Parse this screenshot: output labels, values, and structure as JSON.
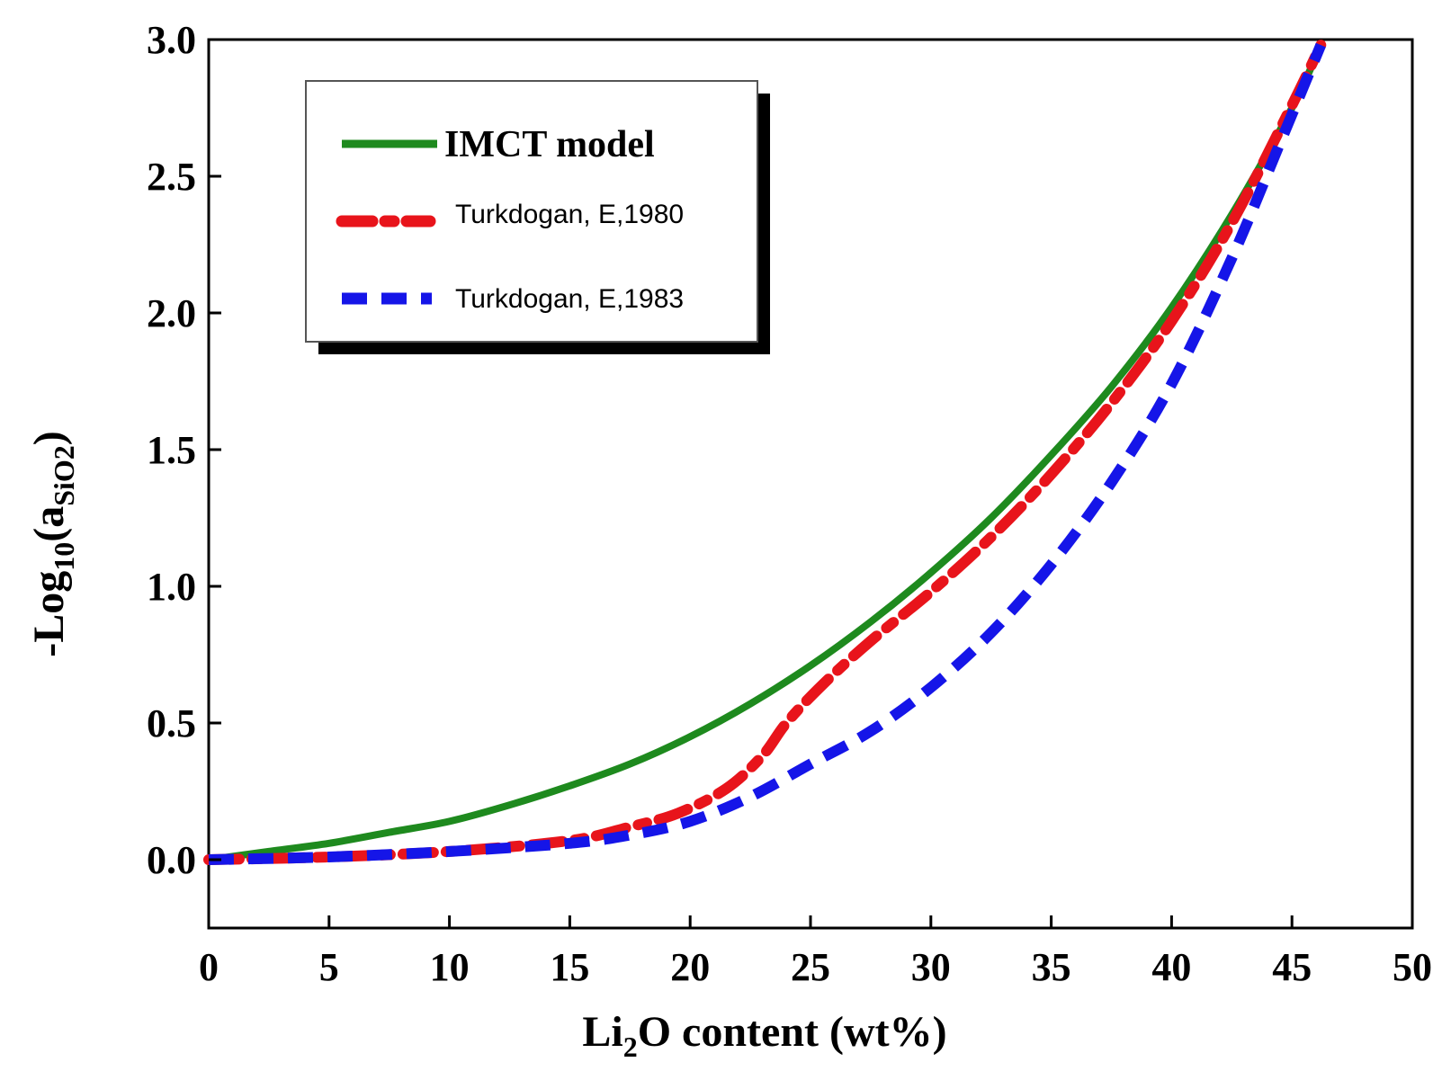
{
  "chart_data": {
    "type": "line",
    "xlabel": {
      "pre": "Li",
      "sub": "2",
      "post": "O content (wt%)"
    },
    "ylabel": {
      "pre": "-Log",
      "sub1": "10",
      "mid": "(a",
      "sub2": "SiO2",
      "post": ")"
    },
    "xlim": [
      0,
      50
    ],
    "ylim": [
      -0.25,
      3.0
    ],
    "xticks": [
      0,
      5,
      10,
      15,
      20,
      25,
      30,
      35,
      40,
      45,
      50
    ],
    "xtick_labels": [
      "0",
      "5",
      "10",
      "15",
      "20",
      "25",
      "30",
      "35",
      "40",
      "45",
      "50"
    ],
    "yticks": [
      0.0,
      0.5,
      1.0,
      1.5,
      2.0,
      2.5,
      3.0
    ],
    "ytick_labels": [
      "0.0",
      "0.5",
      "1.0",
      "1.5",
      "2.0",
      "2.5",
      "3.0"
    ],
    "grid": false,
    "legend_position": "top-left",
    "series": [
      {
        "name": "IMCT model",
        "color": "#1e8a1e",
        "style": "solid",
        "x": [
          0,
          2.5,
          5,
          7.5,
          10,
          12.5,
          15,
          17.5,
          20,
          22.5,
          25,
          27.5,
          30,
          32.5,
          35,
          37.5,
          40,
          42.5,
          45,
          46.2
        ],
        "y": [
          0.0,
          0.03,
          0.06,
          0.1,
          0.14,
          0.2,
          0.27,
          0.35,
          0.45,
          0.57,
          0.71,
          0.87,
          1.05,
          1.25,
          1.48,
          1.73,
          2.02,
          2.36,
          2.75,
          2.98
        ]
      },
      {
        "name": "Turkdogan, E,1980",
        "color": "#e8141b",
        "style": "dashdot",
        "x": [
          0,
          5,
          10,
          15,
          17.5,
          19.5,
          21.5,
          23,
          24,
          25.5,
          27.5,
          30,
          32.5,
          35,
          37.5,
          40,
          42.5,
          45,
          46.2
        ],
        "y": [
          0.0,
          0.01,
          0.03,
          0.07,
          0.12,
          0.17,
          0.26,
          0.38,
          0.5,
          0.64,
          0.8,
          0.98,
          1.18,
          1.41,
          1.67,
          1.97,
          2.33,
          2.76,
          2.98
        ]
      },
      {
        "name": "Turkdogan, E,1983",
        "color": "#1515e8",
        "style": "dashed",
        "x": [
          0,
          5,
          10,
          15,
          17.5,
          20,
          22.5,
          25,
          27.5,
          30,
          32.5,
          35,
          37.5,
          40,
          42.5,
          44.5,
          46.2
        ],
        "y": [
          0.0,
          0.01,
          0.03,
          0.06,
          0.09,
          0.14,
          0.23,
          0.35,
          0.47,
          0.63,
          0.83,
          1.08,
          1.38,
          1.74,
          2.2,
          2.62,
          2.98
        ]
      }
    ]
  }
}
